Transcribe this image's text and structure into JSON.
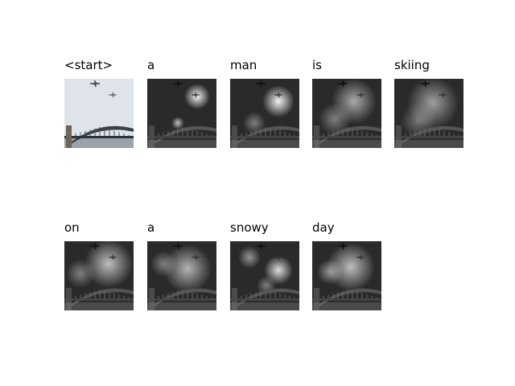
{
  "panels": [
    {
      "word": "<start>",
      "kind": "original"
    },
    {
      "word": "a",
      "kind": "attention"
    },
    {
      "word": "man",
      "kind": "attention"
    },
    {
      "word": "is",
      "kind": "attention"
    },
    {
      "word": "skiing",
      "kind": "attention"
    },
    {
      "word": "on",
      "kind": "attention"
    },
    {
      "word": "a",
      "kind": "attention"
    },
    {
      "word": "snowy",
      "kind": "attention"
    },
    {
      "word": "day",
      "kind": "attention"
    }
  ]
}
